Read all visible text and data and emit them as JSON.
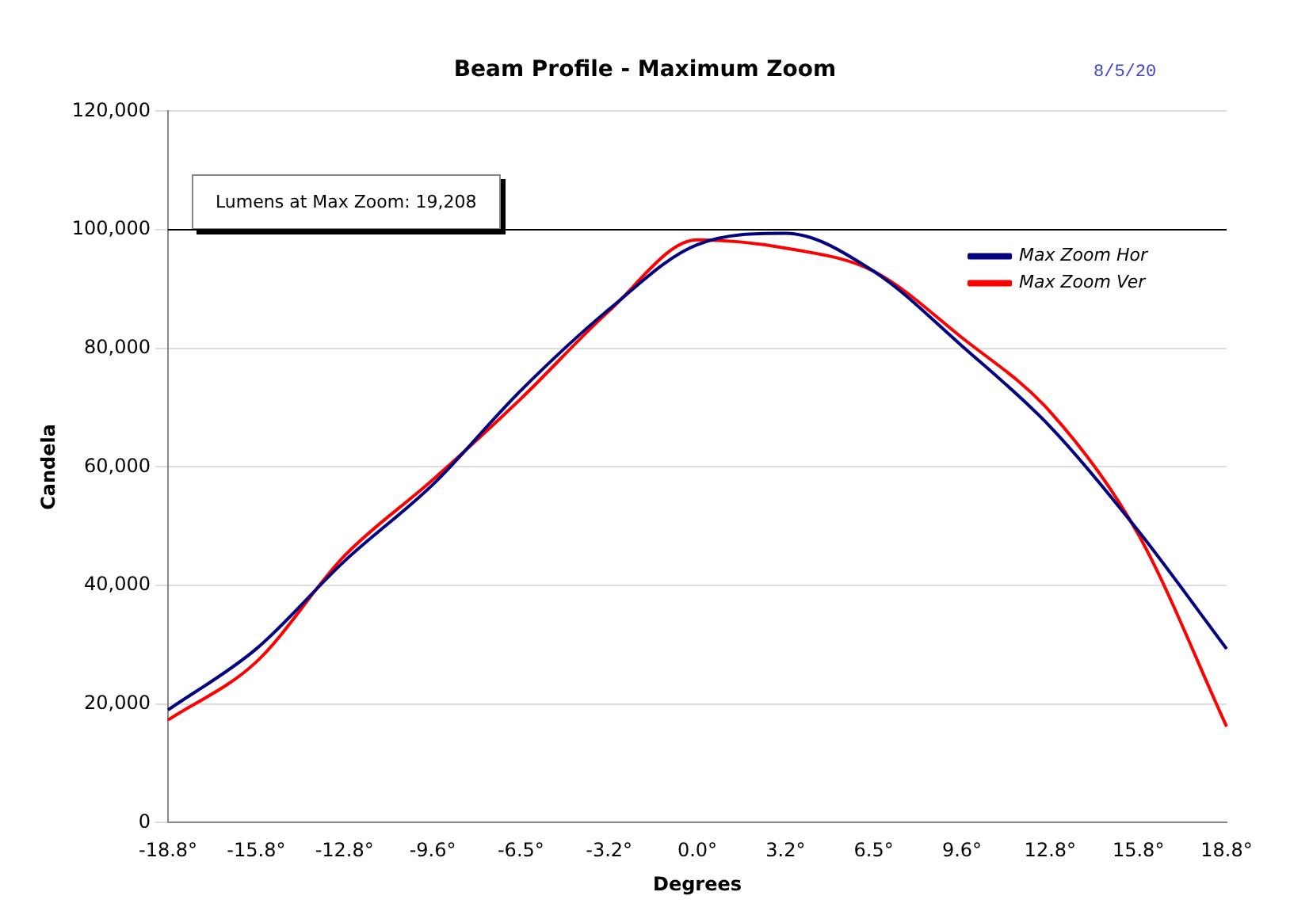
{
  "chart_data": {
    "type": "line",
    "title": "Beam Profile - Maximum Zoom",
    "xlabel": "Degrees",
    "ylabel": "Candela",
    "annotations": [
      "8/5/20",
      "Lumens at Max Zoom: 19,208"
    ],
    "categories": [
      "-18.8°",
      "-15.8°",
      "-12.8°",
      "-9.6°",
      "-6.5°",
      "-3.2°",
      "0.0°",
      "3.2°",
      "6.5°",
      "9.6°",
      "12.8°",
      "15.8°",
      "18.8°"
    ],
    "series": [
      {
        "name": "Max Zoom Hor",
        "color": "#000080",
        "values": [
          19000,
          29300,
          44100,
          57000,
          72900,
          86600,
          97500,
          99400,
          93000,
          80400,
          66800,
          49200,
          29300
        ]
      },
      {
        "name": "Max Zoom Ver",
        "color": "#ff0000",
        "values": [
          17300,
          27100,
          45000,
          57800,
          71500,
          86300,
          98300,
          96900,
          93000,
          81800,
          69300,
          48600,
          16200
        ]
      }
    ],
    "ylim": [
      0,
      120000
    ],
    "yticks": [
      0,
      {
        "value": 20000,
        "label": "20,000"
      },
      {
        "value": 40000,
        "label": "40,000"
      },
      {
        "value": 60000,
        "label": "60,000"
      },
      {
        "value": 80000,
        "label": "80,000"
      },
      {
        "value": 100000,
        "label": "100,000"
      },
      {
        "value": 120000,
        "label": "120,000"
      }
    ],
    "ref_lines": [
      {
        "axis": "y",
        "value": 100000,
        "color": "#000000"
      }
    ],
    "grid": "y",
    "legend": "top right",
    "marker": "none",
    "line_style": "solid"
  }
}
